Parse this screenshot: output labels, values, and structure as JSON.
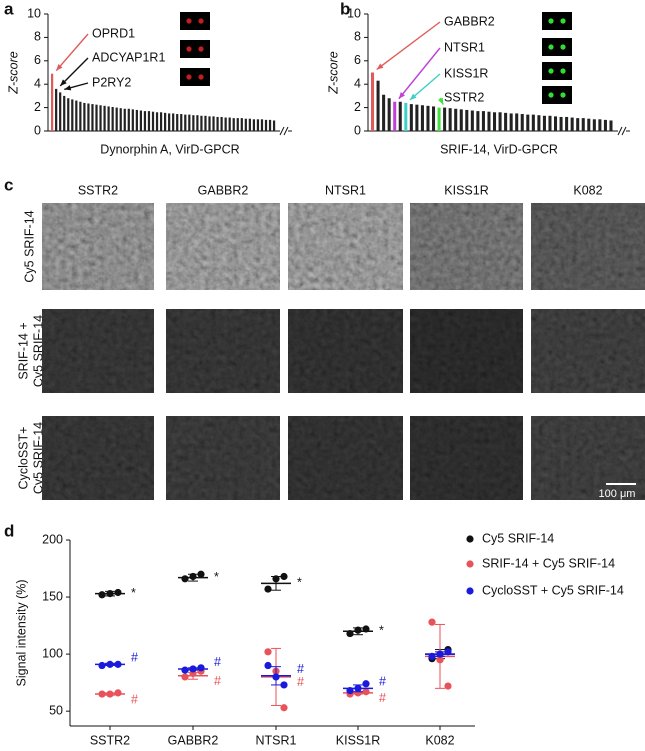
{
  "chart_data": [
    {
      "type": "bar",
      "label": "a",
      "xlabel": "Dynorphin A, VirD-GPCR",
      "ylabel": "Z-score",
      "ylim": [
        0,
        10
      ],
      "yticks": [
        0,
        2,
        4,
        6,
        8,
        10
      ],
      "color": "#222222",
      "values": [
        4.9,
        3.6,
        3.3,
        3.0,
        2.8,
        2.7,
        2.6,
        2.5,
        2.4,
        2.35,
        2.3,
        2.25,
        2.2,
        2.15,
        2.1,
        2.05,
        2.0,
        1.95,
        1.9,
        1.9,
        1.85,
        1.8,
        1.75,
        1.7,
        1.7,
        1.65,
        1.6,
        1.6,
        1.55,
        1.5,
        1.5,
        1.45,
        1.45,
        1.4,
        1.4,
        1.35,
        1.35,
        1.3,
        1.3,
        1.25,
        1.25,
        1.2,
        1.2,
        1.15,
        1.15,
        1.1,
        1.1,
        1.1,
        1.05,
        1.05,
        1.0,
        1.0,
        1.0,
        0.95,
        0.95,
        0.9
      ],
      "highlights": [
        {
          "index": 0,
          "color": "#e05a5a"
        }
      ],
      "annotations": [
        "OPRD1",
        "ADCYAP1R1",
        "P2RY2"
      ]
    },
    {
      "type": "bar",
      "label": "b",
      "xlabel": "SRIF-14, VirD-GPCR",
      "ylabel": "Z-score",
      "ylim": [
        0,
        10
      ],
      "yticks": [
        0,
        2,
        4,
        6,
        8,
        10
      ],
      "color": "#222222",
      "values": [
        5.0,
        4.3,
        3.1,
        2.8,
        2.5,
        2.5,
        2.4,
        2.3,
        2.25,
        2.2,
        2.15,
        2.1,
        2.0,
        2.0,
        1.95,
        1.9,
        1.85,
        1.8,
        1.75,
        1.7,
        1.7,
        1.65,
        1.6,
        1.6,
        1.55,
        1.5,
        1.5,
        1.45,
        1.4,
        1.4,
        1.35,
        1.3,
        1.3,
        1.25,
        1.2,
        1.2,
        1.15,
        1.1,
        1.1,
        1.05,
        1.0,
        1.0,
        0.95,
        0.9
      ],
      "highlights": [
        {
          "index": 0,
          "color": "#e05a5a"
        },
        {
          "index": 4,
          "color": "#c040d8"
        },
        {
          "index": 6,
          "color": "#40d0c8"
        },
        {
          "index": 12,
          "color": "#40e040"
        }
      ],
      "annotations": [
        "GABBR2",
        "NTSR1",
        "KISS1R",
        "SSTR2"
      ]
    },
    {
      "type": "dot",
      "label": "d",
      "ylabel": "Signal intensity (%)",
      "categories": [
        "SSTR2",
        "GABBR2",
        "NTSR1",
        "KISS1R",
        "K082"
      ],
      "ylim": [
        37,
        200
      ],
      "yticks": [
        50,
        100,
        150,
        200
      ],
      "series": [
        {
          "name": "Cy5 SRIF-14",
          "color": "#111111",
          "values": [
            153,
            167,
            162,
            120,
            100
          ],
          "errors": [
            2,
            3,
            6,
            3,
            4
          ],
          "points": [
            [
              152,
              153,
              154
            ],
            [
              166,
              168,
              170
            ],
            [
              157,
              166,
              168
            ],
            [
              118,
              121,
              122
            ],
            [
              96,
              100,
              104
            ]
          ],
          "marks": [
            "*",
            "*",
            "*",
            "*",
            null
          ]
        },
        {
          "name": "SRIF-14 + Cy5 SRIF-14",
          "color": "#e8525a",
          "values": [
            65,
            81,
            80,
            66,
            98
          ],
          "errors": [
            1,
            3,
            25,
            1,
            28
          ],
          "points": [
            [
              65,
              65,
              66
            ],
            [
              80,
              83,
              85
            ],
            [
              102,
              85,
              53
            ],
            [
              65,
              66,
              67
            ],
            [
              128,
              95,
              72
            ]
          ],
          "marks": [
            "#",
            "#",
            "#",
            "#",
            null
          ]
        },
        {
          "name": "CycloSST + Cy5 SRIF-14",
          "color": "#1a1adc",
          "values": [
            91,
            87,
            81,
            70,
            100
          ],
          "errors": [
            1,
            1,
            8,
            3,
            2
          ],
          "points": [
            [
              90,
              91,
              91
            ],
            [
              86,
              87,
              88
            ],
            [
              90,
              80,
              73
            ],
            [
              68,
              70,
              74
            ],
            [
              98,
              100,
              102
            ]
          ],
          "marks": [
            "#",
            "#",
            "#",
            "#",
            null
          ]
        }
      ]
    }
  ],
  "panel_c": {
    "label": "c",
    "columns": [
      "SSTR2",
      "GABBR2",
      "NTSR1",
      "KISS1R",
      "K082"
    ],
    "rows": [
      [
        "Cy5 SRIF-14"
      ],
      [
        "SRIF-14 +",
        "Cy5 SRIF-14"
      ],
      [
        "CycloSST+",
        "Cy5 SRIF-14"
      ]
    ],
    "scale_bar": "100 μm"
  }
}
